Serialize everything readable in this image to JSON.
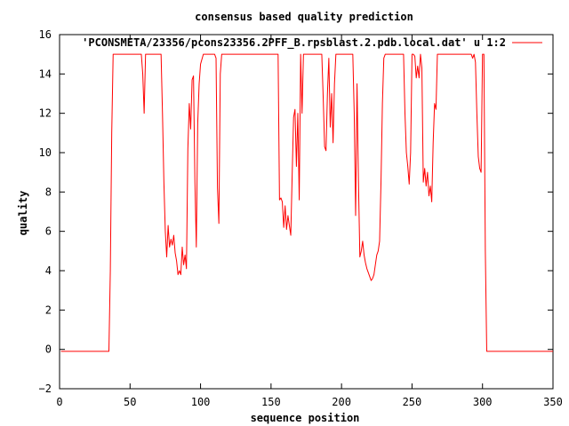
{
  "chart_data": {
    "type": "line",
    "title": "consensus based quality prediction",
    "xlabel": "sequence position",
    "ylabel": "quality",
    "xlim": [
      0,
      350
    ],
    "ylim": [
      -2,
      16
    ],
    "xticks": [
      0,
      50,
      100,
      150,
      200,
      250,
      300,
      350
    ],
    "yticks": [
      -2,
      0,
      2,
      4,
      6,
      8,
      10,
      12,
      14,
      16
    ],
    "grid": false,
    "legend_position": "top-right",
    "series": [
      {
        "name": "'PCONSMETA/23356/pcons23356.2PFF_B.rpsblast.2.pdb.local.dat' u 1:2",
        "color": "#ff0000",
        "points": [
          [
            1,
            -0.1
          ],
          [
            35,
            -0.1
          ],
          [
            36,
            4
          ],
          [
            37,
            11
          ],
          [
            38,
            15
          ],
          [
            58,
            15
          ],
          [
            59,
            14
          ],
          [
            60,
            12
          ],
          [
            61,
            15
          ],
          [
            72,
            15
          ],
          [
            73,
            12
          ],
          [
            74,
            8.5
          ],
          [
            75,
            6
          ],
          [
            76,
            4.7
          ],
          [
            77,
            6.3
          ],
          [
            78,
            5.2
          ],
          [
            79,
            5.6
          ],
          [
            80,
            5.3
          ],
          [
            81,
            5.8
          ],
          [
            82,
            4.9
          ],
          [
            83,
            4.5
          ],
          [
            84,
            3.8
          ],
          [
            85,
            4
          ],
          [
            86,
            3.8
          ],
          [
            87,
            5.2
          ],
          [
            88,
            4.3
          ],
          [
            89,
            4.8
          ],
          [
            90,
            4.1
          ],
          [
            91,
            10.2
          ],
          [
            92,
            12.5
          ],
          [
            93,
            11.2
          ],
          [
            94,
            13.7
          ],
          [
            95,
            13.9
          ],
          [
            96,
            8.5
          ],
          [
            97,
            5.2
          ],
          [
            98,
            11.5
          ],
          [
            99,
            13.5
          ],
          [
            100,
            14.5
          ],
          [
            102,
            15
          ],
          [
            110,
            15
          ],
          [
            111,
            14.8
          ],
          [
            112,
            8.2
          ],
          [
            113,
            6.4
          ],
          [
            114,
            14
          ],
          [
            115,
            15
          ],
          [
            155,
            15
          ],
          [
            156,
            7.6
          ],
          [
            157,
            7.7
          ],
          [
            158,
            7.5
          ],
          [
            159,
            6.2
          ],
          [
            160,
            7.3
          ],
          [
            161,
            6.1
          ],
          [
            162,
            6.8
          ],
          [
            163,
            6.3
          ],
          [
            164,
            5.8
          ],
          [
            165,
            8.9
          ],
          [
            166,
            11.8
          ],
          [
            167,
            12.2
          ],
          [
            168,
            9.3
          ],
          [
            169,
            12
          ],
          [
            170,
            7.6
          ],
          [
            171,
            15
          ],
          [
            172,
            12
          ],
          [
            173,
            15
          ],
          [
            186,
            15
          ],
          [
            187,
            12.8
          ],
          [
            188,
            10.3
          ],
          [
            189,
            10.1
          ],
          [
            190,
            13
          ],
          [
            191,
            14.8
          ],
          [
            192,
            11.3
          ],
          [
            193,
            13
          ],
          [
            194,
            10.5
          ],
          [
            195,
            13.5
          ],
          [
            196,
            15
          ],
          [
            208,
            15
          ],
          [
            209,
            12
          ],
          [
            210,
            6.8
          ],
          [
            211,
            13.5
          ],
          [
            212,
            8.6
          ],
          [
            213,
            4.7
          ],
          [
            214,
            5
          ],
          [
            215,
            5.5
          ],
          [
            216,
            4.8
          ],
          [
            217,
            4.4
          ],
          [
            218,
            4.1
          ],
          [
            219,
            3.9
          ],
          [
            220,
            3.7
          ],
          [
            221,
            3.5
          ],
          [
            222,
            3.6
          ],
          [
            223,
            3.8
          ],
          [
            224,
            4.3
          ],
          [
            225,
            4.8
          ],
          [
            226,
            5
          ],
          [
            227,
            5.5
          ],
          [
            228,
            8.5
          ],
          [
            229,
            12.5
          ],
          [
            230,
            14.8
          ],
          [
            231,
            15
          ],
          [
            244,
            15
          ],
          [
            245,
            12
          ],
          [
            246,
            10
          ],
          [
            247,
            9.3
          ],
          [
            248,
            8.4
          ],
          [
            249,
            10
          ],
          [
            250,
            15
          ],
          [
            251,
            15
          ],
          [
            252,
            14.9
          ],
          [
            253,
            13.8
          ],
          [
            254,
            14.4
          ],
          [
            255,
            13.8
          ],
          [
            256,
            15
          ],
          [
            257,
            14.3
          ],
          [
            258,
            8.5
          ],
          [
            259,
            9.2
          ],
          [
            260,
            8.3
          ],
          [
            261,
            9
          ],
          [
            262,
            7.8
          ],
          [
            263,
            8.3
          ],
          [
            264,
            7.5
          ],
          [
            265,
            10.5
          ],
          [
            266,
            12.5
          ],
          [
            267,
            12.2
          ],
          [
            268,
            15
          ],
          [
            292,
            15
          ],
          [
            293,
            14.8
          ],
          [
            294,
            15
          ],
          [
            295,
            14.6
          ],
          [
            296,
            12
          ],
          [
            297,
            9.8
          ],
          [
            298,
            9.2
          ],
          [
            299,
            9
          ],
          [
            300,
            15
          ],
          [
            301,
            15
          ],
          [
            302,
            5
          ],
          [
            303,
            -0.1
          ],
          [
            350,
            -0.1
          ]
        ]
      }
    ]
  }
}
